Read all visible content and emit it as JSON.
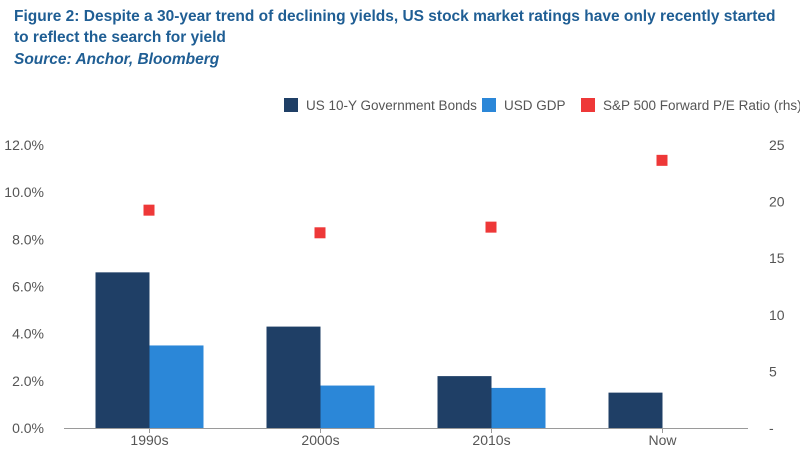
{
  "title": "Figure 2: Despite a 30-year trend of declining yields, US stock market ratings have only recently started to reflect the search for yield",
  "source": "Source: Anchor, Bloomberg",
  "colors": {
    "bonds": "#1f3f66",
    "gdp": "#2b87d8",
    "pe": "#ee3838",
    "title": "#1f5e94",
    "axis_text": "#555555"
  },
  "chart_data": {
    "type": "bar",
    "categories": [
      "1990s",
      "2000s",
      "2010s",
      "Now"
    ],
    "series": [
      {
        "name": "US 10-Y Government Bonds",
        "type": "bar",
        "axis": "left",
        "values": [
          6.6,
          4.3,
          2.2,
          1.5
        ]
      },
      {
        "name": "USD GDP",
        "type": "bar",
        "axis": "left",
        "values": [
          3.5,
          1.8,
          1.7,
          null
        ]
      },
      {
        "name": "S&P 500 Forward P/E Ratio (rhs)",
        "type": "scatter",
        "axis": "right",
        "values": [
          19.2,
          17.2,
          17.7,
          23.6
        ]
      }
    ],
    "y_left": {
      "min": 0,
      "max": 12,
      "ticks": [
        "0.0%",
        "2.0%",
        "4.0%",
        "6.0%",
        "8.0%",
        "10.0%",
        "12.0%"
      ]
    },
    "y_right": {
      "min": 0,
      "max": 25,
      "ticks": [
        "-",
        "5",
        "10",
        "15",
        "20",
        "25"
      ]
    },
    "legend_position": "top-right",
    "grid": false
  }
}
